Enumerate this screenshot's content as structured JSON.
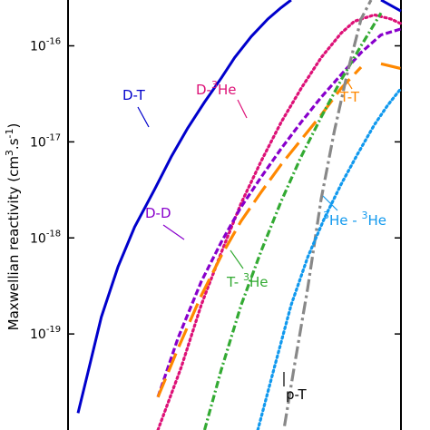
{
  "chart_data": {
    "type": "line",
    "ylabel": "Maxwellian reactivity (cm3.s-1)",
    "ylabel_parts": {
      "main": "Maxwellian reactivity (cm",
      "sup1": "3",
      "mid": ".s",
      "sup2": "-1",
      "end": ")"
    },
    "yscale": "log",
    "ylim": [
      1e-20,
      3e-16
    ],
    "y_ticks": [
      {
        "base": "10",
        "exp": "-16",
        "value": 1e-16
      },
      {
        "base": "10",
        "exp": "-17",
        "value": 1e-17
      },
      {
        "base": "10",
        "exp": "-18",
        "value": 1e-18
      },
      {
        "base": "10",
        "exp": "-19",
        "value": 1e-19
      }
    ],
    "x_ticks_visible": false,
    "xlim": [
      0,
      100
    ],
    "series": [
      {
        "name": "D-T",
        "label": {
          "pre": "D-T",
          "sup": "",
          "post": ""
        },
        "color": "#0000cc",
        "style": "solid",
        "x": [
          3,
          6,
          10,
          15,
          20,
          26,
          31,
          36,
          41,
          46,
          50,
          55,
          60,
          64,
          67
        ],
        "y": [
          1.5e-20,
          4e-20,
          1.5e-19,
          5e-19,
          1.3e-18,
          3.2e-18,
          7e-18,
          1.4e-17,
          2.6e-17,
          4.6e-17,
          7.5e-17,
          1.25e-16,
          1.9e-16,
          2.5e-16,
          3e-16
        ]
      },
      {
        "name": "D-T tail",
        "label": {
          "pre": "",
          "sup": "",
          "post": ""
        },
        "color": "#0000cc",
        "style": "solid",
        "x": [
          94,
          100
        ],
        "y": [
          3e-16,
          2.3e-16
        ]
      },
      {
        "name": "D-3He",
        "label": {
          "pre": "D-",
          "sup": "3",
          "post": "He"
        },
        "color": "#dd1177",
        "style": "dotted",
        "x": [
          27,
          34,
          40,
          46,
          52,
          58,
          64,
          70,
          76,
          82,
          86,
          92,
          97,
          100
        ],
        "y": [
          1e-20,
          4.5e-20,
          2e-19,
          7e-19,
          2.3e-18,
          6.3e-18,
          1.6e-17,
          3.6e-17,
          7.5e-17,
          1.35e-16,
          1.8e-16,
          2.1e-16,
          1.9e-16,
          1.7e-16
        ]
      },
      {
        "name": "D-D",
        "label": {
          "pre": "D-D",
          "sup": "",
          "post": ""
        },
        "color": "#8800cc",
        "style": "dashed",
        "x": [
          27,
          33,
          40,
          46,
          52,
          58,
          64,
          70,
          76,
          82,
          88,
          94,
          100
        ],
        "y": [
          2.2e-20,
          9e-20,
          3.5e-19,
          9e-19,
          2.1e-18,
          4.3e-18,
          8.5e-18,
          1.6e-17,
          2.9e-17,
          5e-17,
          8.5e-17,
          1.3e-16,
          1.5e-16
        ]
      },
      {
        "name": "T-T",
        "label": {
          "pre": "T-T",
          "sup": "",
          "post": ""
        },
        "color": "#ff8800",
        "style": "longdash",
        "x": [
          27,
          33,
          40,
          46,
          52,
          58,
          64,
          70,
          76,
          82,
          88
        ],
        "y": [
          2.2e-20,
          7e-20,
          2.5e-19,
          6.5e-19,
          1.5e-18,
          3e-18,
          5.8e-18,
          1.05e-17,
          1.9e-17,
          3.6e-17,
          6e-17
        ]
      },
      {
        "name": "T-T tail",
        "label": {
          "pre": "",
          "sup": "",
          "post": ""
        },
        "color": "#ff8800",
        "style": "longdash",
        "x": [
          94,
          100
        ],
        "y": [
          6.5e-17,
          5.8e-17
        ]
      },
      {
        "name": "T-3He",
        "label": {
          "pre": "T- ",
          "sup": "3",
          "post": "He"
        },
        "color": "#33aa33",
        "style": "dashdot",
        "x": [
          41,
          46,
          52,
          58,
          64,
          70,
          76,
          82,
          88,
          94
        ],
        "y": [
          1e-20,
          4.2e-20,
          2e-19,
          7.3e-19,
          2.4e-18,
          7e-18,
          1.8e-17,
          4.4e-17,
          1e-16,
          2.2e-16
        ]
      },
      {
        "name": "p-T",
        "label": {
          "pre": "p-T",
          "sup": "",
          "post": ""
        },
        "color": "#888888",
        "style": "dashdotlong",
        "x": [
          65,
          68,
          72,
          76,
          80,
          84,
          88,
          91
        ],
        "y": [
          1.1e-20,
          4.7e-20,
          3e-19,
          2.5e-18,
          1.3e-17,
          5.4e-17,
          1.9e-16,
          3e-16
        ]
      },
      {
        "name": "3He-3He",
        "label": {
          "pre": "",
          "sup": "3",
          "post": "He - ",
          "sup2": "3",
          "post2": "He"
        },
        "color": "#1199ee",
        "style": "dotted",
        "x": [
          57,
          62,
          67,
          72,
          77,
          82,
          87,
          92,
          96,
          100
        ],
        "y": [
          1e-20,
          4.5e-20,
          2e-19,
          6.3e-19,
          1.6e-18,
          3.6e-18,
          7.5e-18,
          1.5e-17,
          2.4e-17,
          3.6e-17
        ]
      }
    ]
  }
}
